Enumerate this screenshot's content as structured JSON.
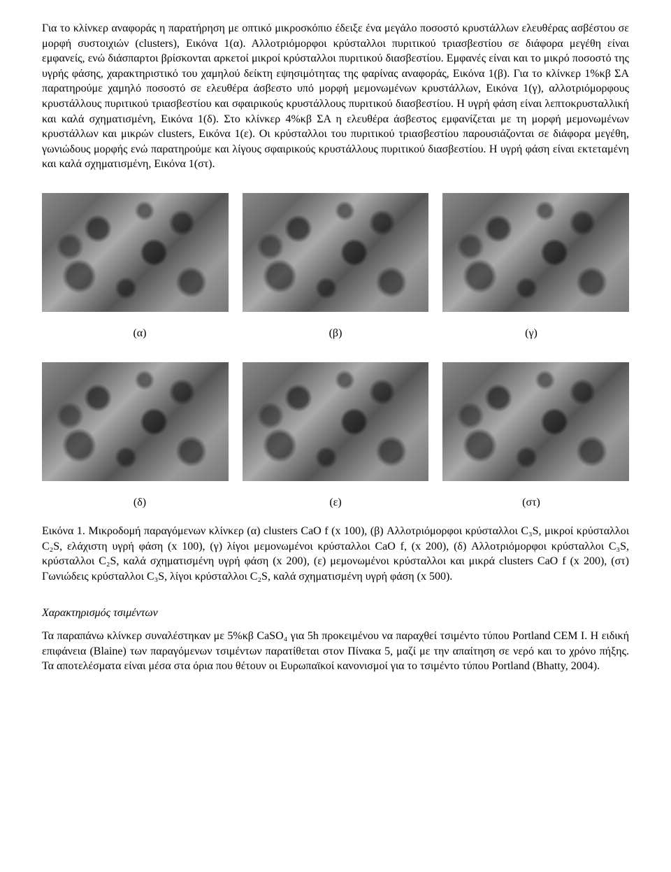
{
  "para1": "Για το κλίνκερ αναφοράς η παρατήρηση με οπτικό μικροσκόπιο έδειξε ένα μεγάλο ποσοστό κρυστάλλων ελευθέρας ασβέστου σε μορφή συστοιχιών (clusters), Εικόνα 1(α). Αλλοτριόμορφοι κρύσταλλοι πυριτικού τριασβεστίου σε διάφορα μεγέθη είναι εμφανείς, ενώ διάσπαρτοι βρίσκονται αρκετοί μικροί κρύσταλλοι πυριτικού διασβεστίου. Εμφανές είναι και το μικρό ποσοστό της υγρής φάσης, χαρακτηριστικό του χαμηλού δείκτη εψησιμότητας της φαρίνας αναφοράς, Εικόνα 1(β). Για το κλίνκερ 1%κβ ΣΑ παρατηρούμε χαμηλό ποσοστό σε ελευθέρα άσβεστο υπό μορφή μεμονωμένων κρυστάλλων, Εικόνα 1(γ), αλλοτριόμορφους κρυστάλλους πυριτικού τριασβεστίου και σφαιρικούς κρυστάλλους πυριτικού διασβεστίου. Η υγρή φάση είναι λεπτοκρυσταλλική και καλά σχηματισμένη, Εικόνα 1(δ). Στο κλίνκερ 4%κβ ΣΑ η ελευθέρα άσβεστος εμφανίζεται με τη μορφή μεμονωμένων κρυστάλλων και μικρών clusters, Εικόνα 1(ε). Οι κρύσταλλοι του πυριτικού τριασβεστίου παρουσιάζονται σε διάφορα μεγέθη, γωνιώδους μορφής ενώ παρατηρούμε και λίγους σφαιρικούς κρυστάλλους πυριτικού διασβεστίου. Η υγρή φάση είναι εκτεταμένη και καλά σχηματισμένη, Εικόνα 1(στ).",
  "labels": {
    "a": "(α)",
    "b": "(β)",
    "c": "(γ)",
    "d": "(δ)",
    "e": "(ε)",
    "f": "(στ)"
  },
  "caption": "Εικόνα 1. Μικροδομή παραγόμενων κλίνκερ (α) clusters CaO f (x 100), (β) Αλλοτριόμορφοι κρύσταλλοι C₃S, μικροί κρύσταλλοι C₂S, ελάχιστη υγρή φάση (x 100), (γ) λίγοι μεμονωμένοι κρύσταλλοι CaO f, (x 200), (δ) Αλλοτριόμορφοι κρύσταλλοι C₃S, κρύσταλλοι C₂S, καλά σχηματισμένη υγρή φάση (x 200), (ε) μεμονωμένοι κρύσταλλοι και μικρά clusters CaO f (x 200), (στ) Γωνιώδεις κρύσταλλοι C₃S, λίγοι κρύσταλλοι C₂S, καλά σχηματισμένη υγρή φάση (x 500).",
  "subheading": "Χαρακτηρισμός τσιμέντων",
  "para2": "Τα παραπάνω κλίνκερ συναλέστηκαν με 5%κβ CaSO₄ για 5h προκειμένου να παραχθεί τσιμέντo τύπου Portland CEM I. Η ειδική επιφάνεια (Blaine) των παραγόμενων τσιμέντων παρατίθεται στον Πίνακα 5, μαζί με την απαίτηση σε νερό και το χρόνο πήξης. Τα αποτελέσματα είναι μέσα στα όρια που θέτουν οι Ευρωπαϊκοί κανονισμοί για το τσιμέντo τύπου Portland (Bhatty, 2004)."
}
